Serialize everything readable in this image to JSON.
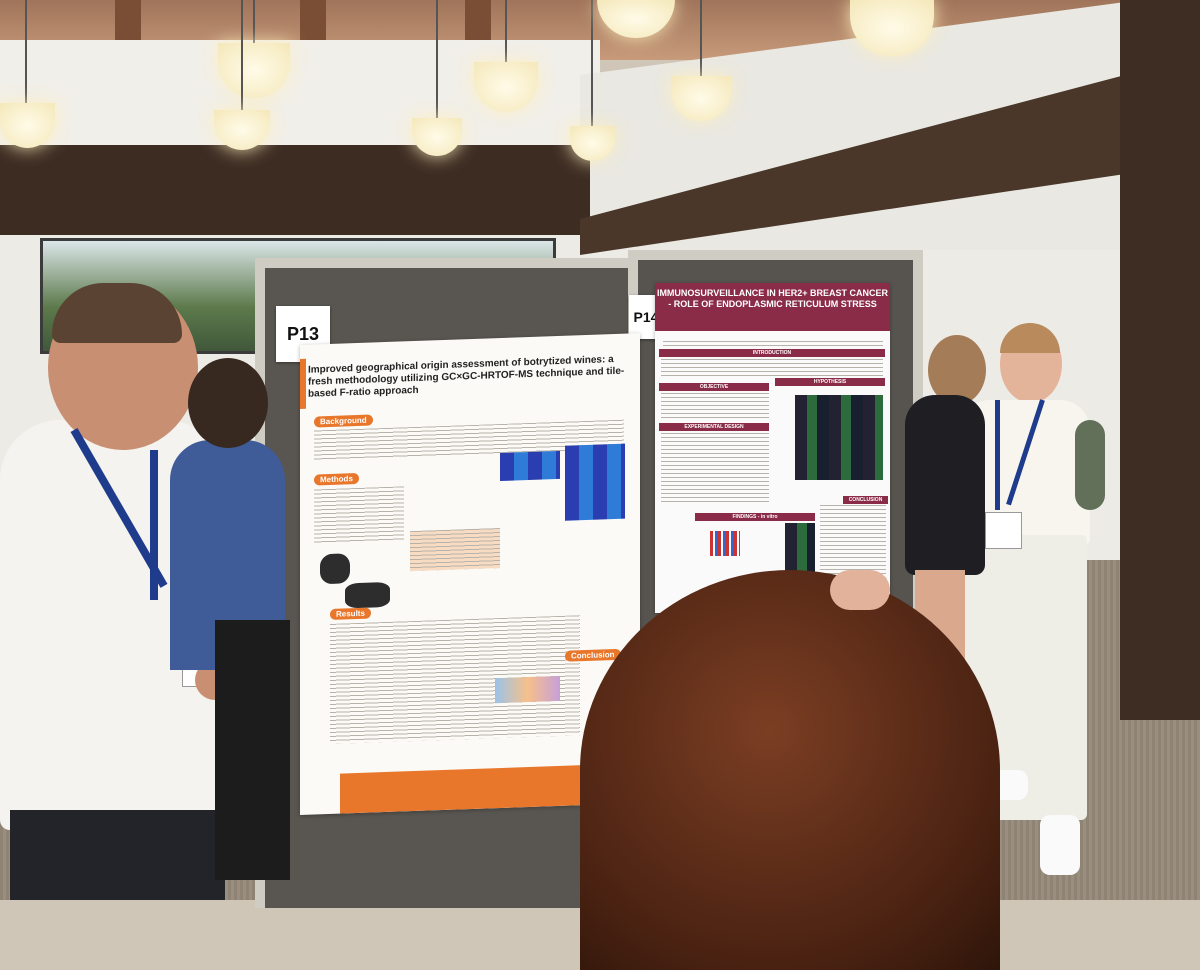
{
  "scene": {
    "poster_left": {
      "number": "P13",
      "title": "Improved geographical origin assessment of botrytized wines: a fresh methodology utilizing GC×GC-HRTOF-MS technique and tile-based F-ratio approach",
      "sections": [
        "Background",
        "Methods",
        "Results",
        "Conclusion"
      ]
    },
    "poster_right": {
      "number": "P14",
      "title": "IMMUNOSURVEILLANCE IN HER2+ BREAST CANCER - ROLE OF ENDOPLASMIC RETICULUM STRESS",
      "sections": [
        "INTRODUCTION",
        "OBJECTIVE",
        "HYPOTHESIS",
        "EXPERIMENTAL DESIGN",
        "FINDINGS - in vitro",
        "CONCLUSION"
      ]
    },
    "colors": {
      "poster_left_accent": "#e8762b",
      "poster_right_accent": "#8a2c48",
      "lanyard": "#1f3b8c"
    }
  }
}
